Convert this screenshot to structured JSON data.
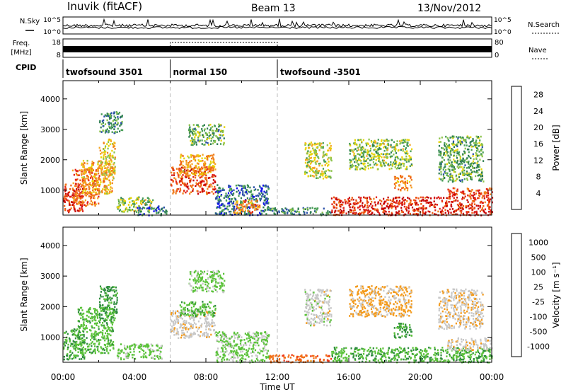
{
  "header": {
    "station": "Inuvik (fitACF)",
    "beam": "Beam 13",
    "date": "13/Nov/2012"
  },
  "top_panel": {
    "nsky_label": "N.Sky",
    "nsearch_label": "N.Search",
    "freq_label": "Freq.",
    "freq_unit": "[MHz]",
    "nave_label": "Nave",
    "cpid_label": "CPID",
    "noise_ticks": [
      "10^5",
      "10^0"
    ],
    "freq_ticks": [
      "18",
      "8"
    ],
    "nave_ticks": [
      "80",
      "0"
    ]
  },
  "cpid_segments": [
    {
      "label": "twofsound 3501",
      "start": 0,
      "end": 6
    },
    {
      "label": "normal 150",
      "start": 6,
      "end": 12
    },
    {
      "label": "twofsound -3501",
      "start": 12,
      "end": 24
    }
  ],
  "x_axis": {
    "label": "Time UT",
    "ticks": [
      "00:00",
      "04:00",
      "08:00",
      "12:00",
      "16:00",
      "20:00",
      "00:00"
    ]
  },
  "colors": {
    "power": [
      "#1010ee",
      "#2a4fa8",
      "#2e7d52",
      "#4b9f58",
      "#8cc34a",
      "#e8d400",
      "#f5a623",
      "#f07e1a",
      "#ef5a12",
      "#e2221a",
      "#c40000"
    ],
    "velocity": [
      "#d80000",
      "#ef3a1a",
      "#f26d17",
      "#f39a1b",
      "#c8c8c8",
      "#5bc23a",
      "#2e8c3e",
      "#2a6f8e",
      "#1f48b0",
      "#1010d0"
    ]
  },
  "chart_data": [
    {
      "type": "heatmap",
      "title": "Power",
      "xlabel": "Time UT",
      "ylabel": "Slant Range [km]",
      "xlim": [
        0,
        24
      ],
      "ylim": [
        180,
        4600
      ],
      "y_ticks": [
        1000,
        2000,
        3000,
        4000
      ],
      "colorbar_label": "Power [dB]",
      "colorbar_ticks": [
        "4",
        "8",
        "12",
        "16",
        "20",
        "24",
        "28"
      ],
      "colorbar_range": [
        0,
        30
      ],
      "regions": [
        {
          "t0": 0.0,
          "t1": 1.1,
          "r0": 300,
          "r1": 1250,
          "level": 26
        },
        {
          "t0": 0.5,
          "t1": 2.0,
          "r0": 500,
          "r1": 1700,
          "level": 22
        },
        {
          "t0": 1.0,
          "t1": 2.8,
          "r0": 900,
          "r1": 2000,
          "level": 18
        },
        {
          "t0": 2.0,
          "t1": 2.9,
          "r0": 1500,
          "r1": 2700,
          "level": 16
        },
        {
          "t0": 2.0,
          "t1": 3.3,
          "r0": 2900,
          "r1": 3600,
          "level": 8
        },
        {
          "t0": 3.0,
          "t1": 5.0,
          "r0": 300,
          "r1": 800,
          "level": 12
        },
        {
          "t0": 4.0,
          "t1": 5.8,
          "r0": 200,
          "r1": 500,
          "level": 6
        },
        {
          "t0": 6.0,
          "t1": 8.5,
          "r0": 900,
          "r1": 1800,
          "level": 24
        },
        {
          "t0": 6.5,
          "t1": 8.5,
          "r0": 1500,
          "r1": 2200,
          "level": 18
        },
        {
          "t0": 7.0,
          "t1": 9.0,
          "r0": 2500,
          "r1": 3200,
          "level": 10
        },
        {
          "t0": 8.5,
          "t1": 11.5,
          "r0": 200,
          "r1": 1200,
          "level": 6
        },
        {
          "t0": 9.5,
          "t1": 11.0,
          "r0": 250,
          "r1": 700,
          "level": 20
        },
        {
          "t0": 11.5,
          "t1": 15.0,
          "r0": 200,
          "r1": 450,
          "level": 8
        },
        {
          "t0": 13.5,
          "t1": 15.0,
          "r0": 1400,
          "r1": 2600,
          "level": 14
        },
        {
          "t0": 15.0,
          "t1": 24.0,
          "r0": 200,
          "r1": 800,
          "level": 26
        },
        {
          "t0": 16.0,
          "t1": 19.5,
          "r0": 1700,
          "r1": 2700,
          "level": 12
        },
        {
          "t0": 18.5,
          "t1": 19.5,
          "r0": 1000,
          "r1": 1500,
          "level": 20
        },
        {
          "t0": 21.0,
          "t1": 23.5,
          "r0": 1300,
          "r1": 2800,
          "level": 10
        },
        {
          "t0": 21.5,
          "t1": 24.0,
          "r0": 800,
          "r1": 1100,
          "level": 24
        }
      ]
    },
    {
      "type": "heatmap",
      "title": "Velocity",
      "xlabel": "Time UT",
      "ylabel": "Slant Range [km]",
      "xlim": [
        0,
        24
      ],
      "ylim": [
        180,
        4600
      ],
      "y_ticks": [
        1000,
        2000,
        3000,
        4000
      ],
      "colorbar_label": "Velocity [m s⁻¹]",
      "colorbar_ticks": [
        "1000",
        "500",
        "100",
        "25",
        "-25",
        "-100",
        "-500",
        "-1000"
      ],
      "colorbar_range": [
        -1200,
        1200
      ],
      "regions": [
        {
          "t0": 0.0,
          "t1": 1.2,
          "r0": 300,
          "r1": 1300,
          "level": -200
        },
        {
          "t0": 0.8,
          "t1": 2.8,
          "r0": 500,
          "r1": 2000,
          "level": -150
        },
        {
          "t0": 2.0,
          "t1": 3.0,
          "r0": 1500,
          "r1": 2700,
          "level": -300
        },
        {
          "t0": 3.0,
          "t1": 5.5,
          "r0": 300,
          "r1": 800,
          "level": -80
        },
        {
          "t0": 6.0,
          "t1": 8.5,
          "r0": 1000,
          "r1": 1900,
          "level": 150
        },
        {
          "t0": 6.5,
          "t1": 8.5,
          "r0": 1700,
          "r1": 2200,
          "level": -150
        },
        {
          "t0": 7.0,
          "t1": 9.0,
          "r0": 2500,
          "r1": 3200,
          "level": -60
        },
        {
          "t0": 8.5,
          "t1": 11.5,
          "r0": 200,
          "r1": 1200,
          "level": -60
        },
        {
          "t0": 11.5,
          "t1": 15.0,
          "r0": 200,
          "r1": 450,
          "level": 600
        },
        {
          "t0": 13.5,
          "t1": 15.0,
          "r0": 1400,
          "r1": 2600,
          "level": 120
        },
        {
          "t0": 15.0,
          "t1": 24.0,
          "r0": 200,
          "r1": 700,
          "level": -200
        },
        {
          "t0": 16.0,
          "t1": 19.5,
          "r0": 1700,
          "r1": 2700,
          "level": 300
        },
        {
          "t0": 18.5,
          "t1": 19.5,
          "r0": 1000,
          "r1": 1500,
          "level": -250
        },
        {
          "t0": 21.0,
          "t1": 23.5,
          "r0": 1300,
          "r1": 2600,
          "level": 200
        },
        {
          "t0": 21.5,
          "t1": 24.0,
          "r0": 600,
          "r1": 1000,
          "level": 150
        }
      ]
    }
  ]
}
